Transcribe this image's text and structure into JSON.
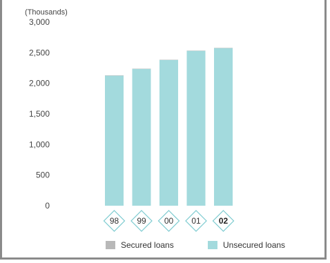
{
  "chart_data": {
    "type": "bar",
    "stacked": true,
    "unit_label": "(Thousands)",
    "categories": [
      "98",
      "99",
      "00",
      "01",
      "02"
    ],
    "highlight_category": "02",
    "series": [
      {
        "name": "Secured loans",
        "values": [
          5,
          5,
          5,
          5,
          5
        ]
      },
      {
        "name": "Unsecured loans",
        "values": [
          2125,
          2235,
          2380,
          2530,
          2575
        ]
      }
    ],
    "ylim": [
      0,
      3000
    ],
    "yticks": [
      "0",
      "500",
      "1,000",
      "1,500",
      "2,000",
      "2,500",
      "3,000"
    ],
    "grid": false,
    "legend_position": "bottom",
    "colors": {
      "Secured loans": "#b8b8b8",
      "Unsecured loans": "#a3dadd",
      "diamond_border": "#7ccbd0",
      "frame": "#8a8a8a"
    }
  }
}
